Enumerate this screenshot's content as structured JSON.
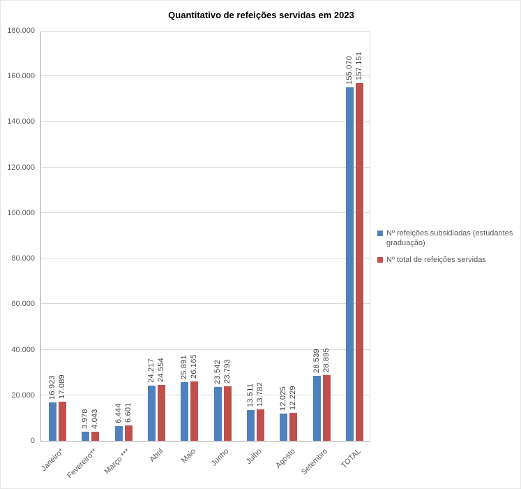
{
  "chart_data": {
    "type": "bar",
    "title": "Quantitativo de refeições servidas em 2023",
    "categories": [
      "Janeiro*",
      "Fevereiro**",
      "Março ***",
      "Abril",
      "Maio",
      "Junho",
      "Julho",
      "Agosto",
      "Setembro",
      "TOTAL"
    ],
    "series": [
      {
        "name": "Nº refeições subsidiadas (estudantes graduação)",
        "color": "#4F81BD",
        "values": [
          16923,
          3978,
          6444,
          24217,
          25891,
          23542,
          13511,
          12025,
          28539,
          155070
        ],
        "value_labels": [
          "16.923",
          "3.978",
          "6.444",
          "24.217",
          "25.891",
          "23.542",
          "13.511",
          "12.025",
          "28.539",
          "155.070"
        ]
      },
      {
        "name": "Nº total de refeições servidas",
        "color": "#C0504D",
        "values": [
          17089,
          4043,
          6601,
          24554,
          26165,
          23793,
          13782,
          12229,
          28895,
          157151
        ],
        "value_labels": [
          "17.089",
          "4.043",
          "6.601",
          "24.554",
          "26.165",
          "23.793",
          "13.782",
          "12.229",
          "28.895",
          "157.151"
        ]
      }
    ],
    "ylim": [
      0,
      180000
    ],
    "ytick_step": 20000,
    "ytick_labels": [
      "0",
      "20.000",
      "40.000",
      "60.000",
      "80.000",
      "100.000",
      "120.000",
      "140.000",
      "160.000",
      "180.000"
    ],
    "grid": true,
    "legend_position": "right",
    "colors": {
      "background": "#FFFFFF",
      "gridline": "#D9D9D9",
      "axis_text": "#595959",
      "label_text": "#404040"
    }
  }
}
